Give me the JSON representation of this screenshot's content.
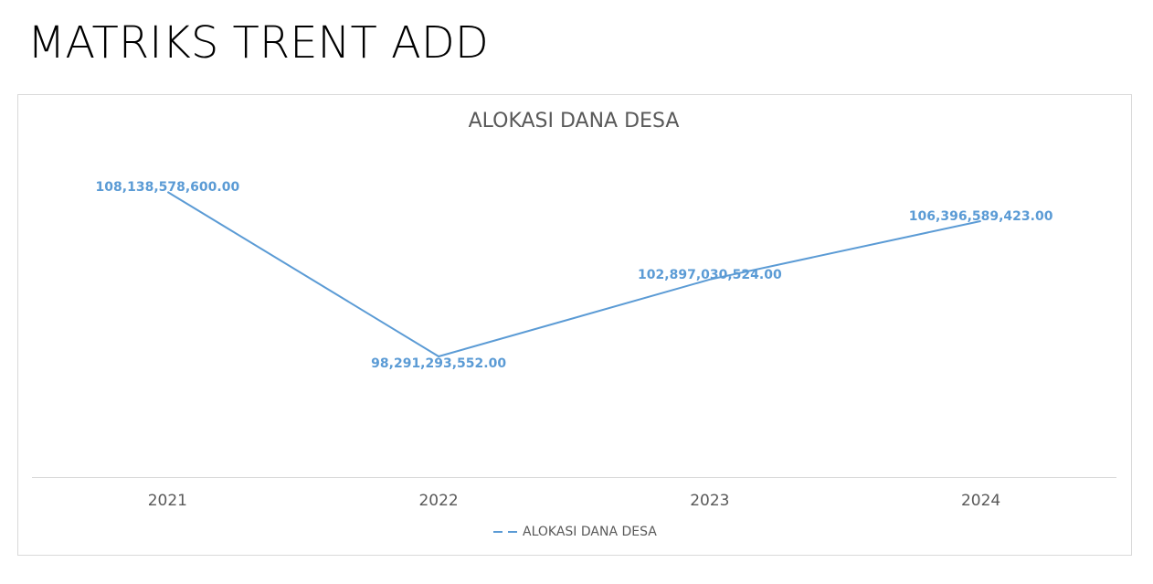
{
  "header": {
    "title": "MATRIKS TRENT ADD"
  },
  "chart_data": {
    "type": "line",
    "title": "ALOKASI DANA DESA",
    "categories": [
      "2021",
      "2022",
      "2023",
      "2024"
    ],
    "series": [
      {
        "name": "ALOKASI DANA DESA",
        "color": "#5b9bd5",
        "values": [
          108138578600,
          98291293552,
          102897030524,
          106396589423
        ],
        "value_labels": [
          "108,138,578,600.00",
          "98,291,293,552.00",
          "102,897,030,524.00",
          "106,396,589,423.00"
        ]
      }
    ],
    "legend": "bottom"
  }
}
